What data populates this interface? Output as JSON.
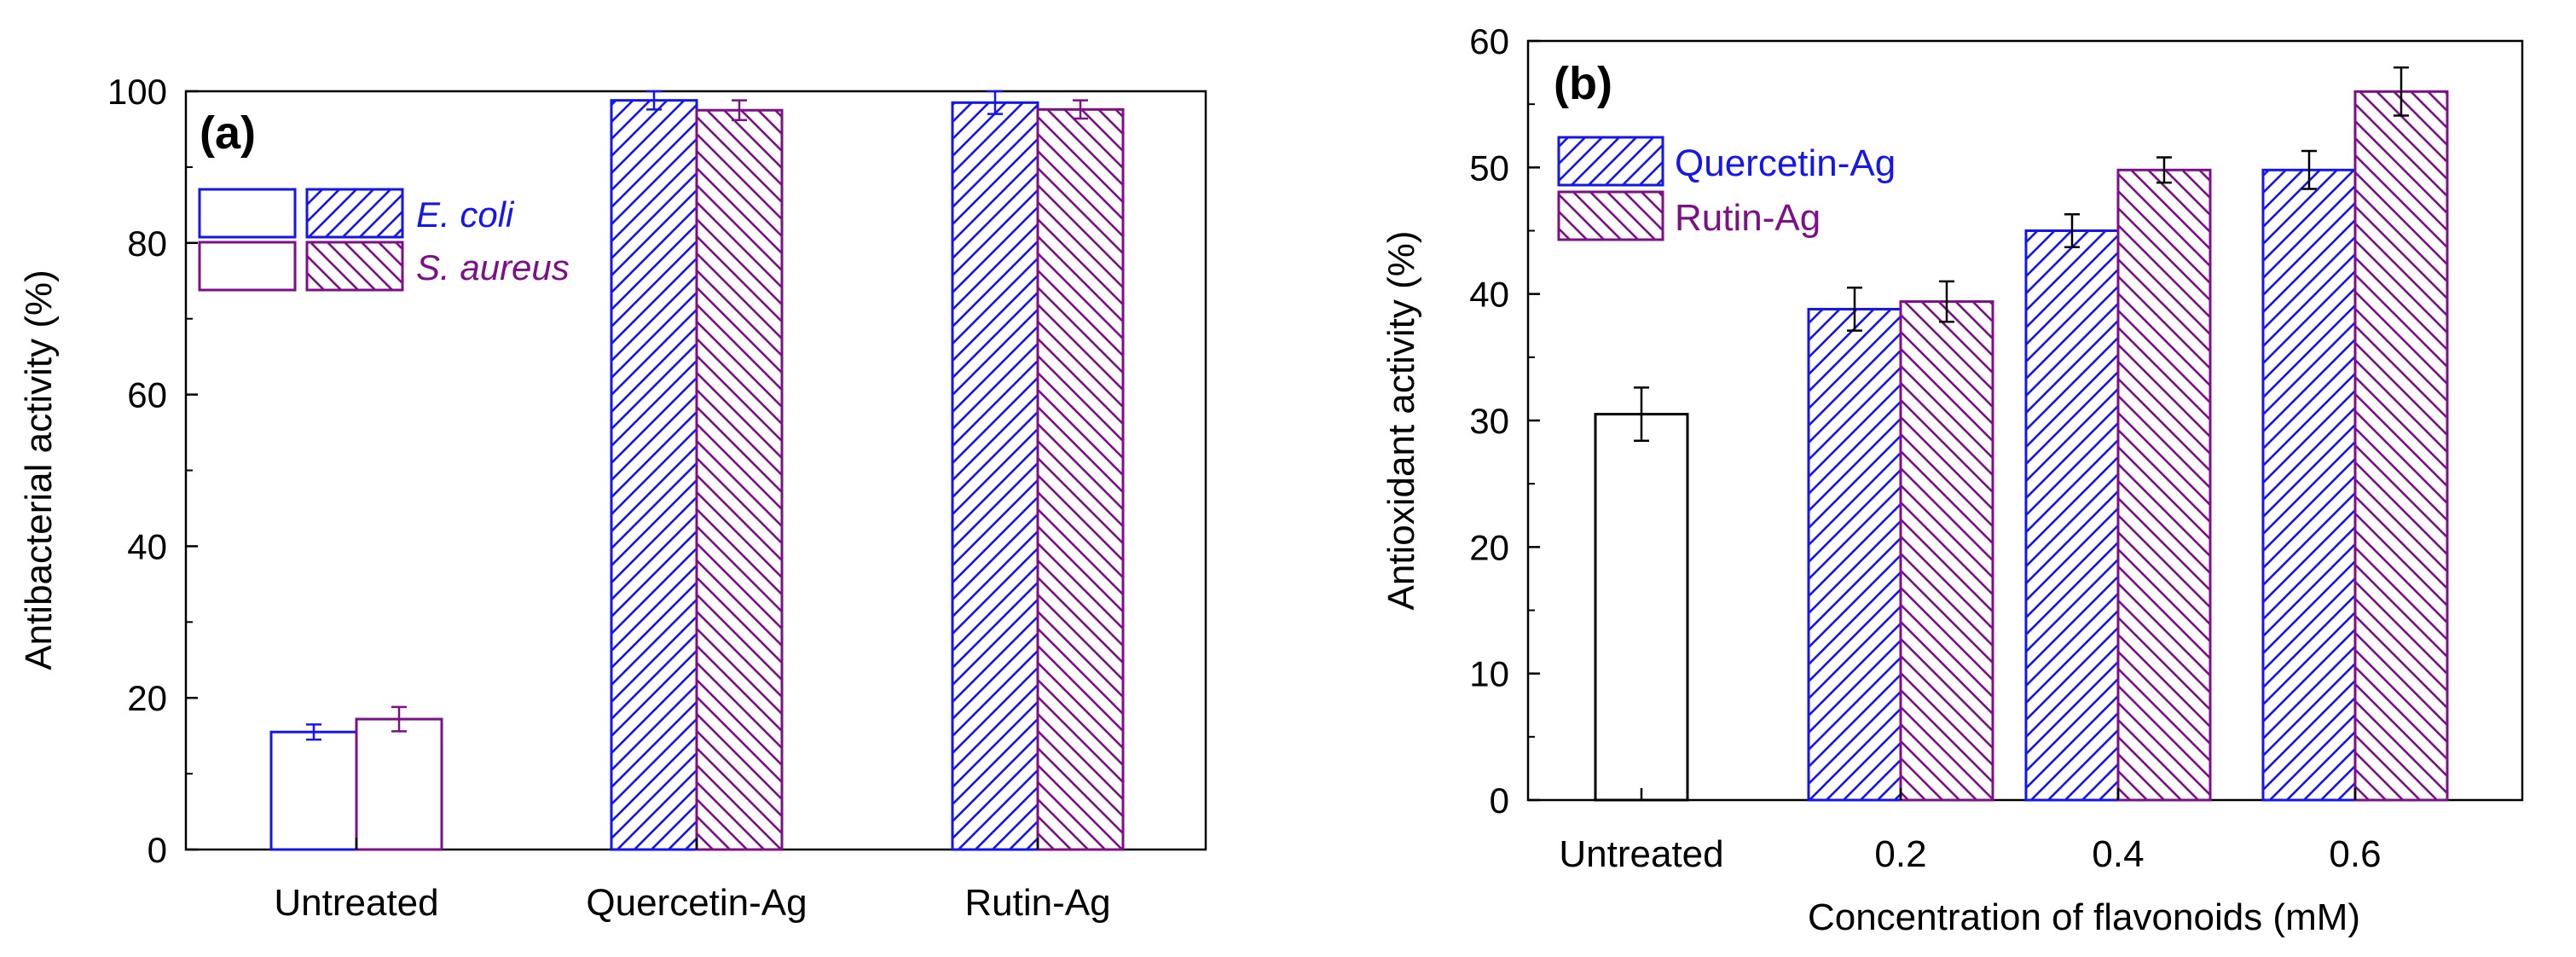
{
  "colors": {
    "ecoli": "#1515ee",
    "saureus": "#7d0f88",
    "untreated": "#000000"
  },
  "chart_data": [
    {
      "type": "bar",
      "panel_label": "(a)",
      "title": "",
      "xlabel": "",
      "ylabel": "Antibacterial activity (%)",
      "ylim": [
        0,
        100
      ],
      "yticks": [
        0,
        20,
        40,
        60,
        80,
        100
      ],
      "categories": [
        "Untreated",
        "Quercetin-Ag",
        "Rutin-Ag"
      ],
      "series": [
        {
          "name": "E. coli",
          "values": [
            15.5,
            98.8,
            98.5
          ],
          "errors": [
            1.0,
            1.2,
            1.5
          ]
        },
        {
          "name": "S. aureus",
          "values": [
            17.2,
            97.5,
            97.6
          ],
          "errors": [
            1.6,
            1.3,
            1.2
          ]
        }
      ],
      "legend": {
        "position": "top-left",
        "entries": [
          {
            "label": "E. coli",
            "series": "E. coli"
          },
          {
            "label": "S. aureus",
            "series": "S. aureus"
          }
        ]
      }
    },
    {
      "type": "bar",
      "panel_label": "(b)",
      "title": "",
      "xlabel": "Concentration of flavonoids (mM)",
      "ylabel": "Antioxidant activity (%)",
      "ylim": [
        0,
        60
      ],
      "yticks": [
        0,
        10,
        20,
        30,
        40,
        50,
        60
      ],
      "categories": [
        "Untreated",
        "0.2",
        "0.4",
        "0.6"
      ],
      "untreated": {
        "value": 30.5,
        "error": 2.1
      },
      "series": [
        {
          "name": "Quercetin-Ag",
          "values": [
            null,
            38.8,
            45.0,
            49.8
          ],
          "errors": [
            null,
            1.7,
            1.3,
            1.5
          ]
        },
        {
          "name": "Rutin-Ag",
          "values": [
            null,
            39.4,
            49.8,
            56.0
          ],
          "errors": [
            null,
            1.6,
            1.0,
            1.9
          ]
        }
      ],
      "legend": {
        "position": "top-left",
        "entries": [
          {
            "label": "Quercetin-Ag",
            "series": "Quercetin-Ag"
          },
          {
            "label": "Rutin-Ag",
            "series": "Rutin-Ag"
          }
        ]
      }
    }
  ]
}
